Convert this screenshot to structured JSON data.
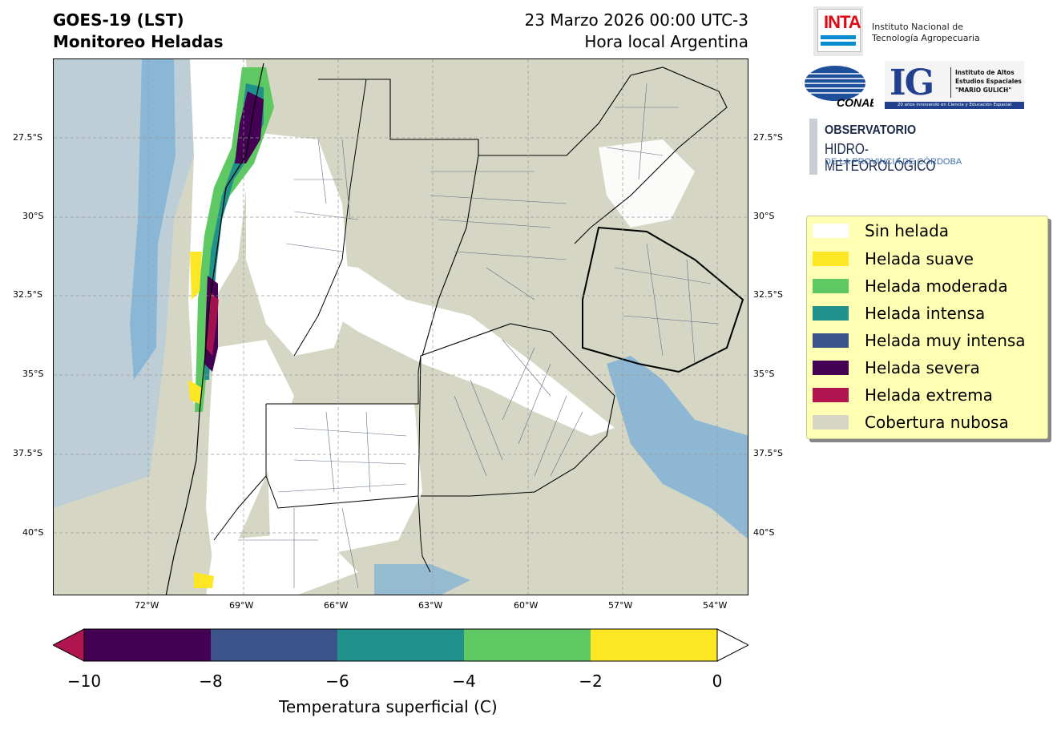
{
  "header": {
    "title_line1": "GOES-19 (LST)",
    "title_line2": "Monitoreo Heladas",
    "date_line": "23 Marzo 2026 00:00 UTC-3",
    "time_note": "Hora local Argentina"
  },
  "logos": {
    "inta_mark": "INTA",
    "inta_line1": "Instituto Nacional de",
    "inta_line2": "Tecnología Agropecuaria",
    "conae_mark": "CONAE",
    "ig_mark": "IG",
    "ig_line1": "Instituto de Altos",
    "ig_line2": "Estudios Espaciales",
    "ig_line3": "\"MARIO GULICH\"",
    "ig_footer": "20 años innovando en Ciencia y Educación Espacial",
    "obs_line1": "OBSERVATORIO",
    "obs_line2": "HIDRO-METEOROLÓGICO",
    "obs_line3": "DE LA PROVINCIA DE CÓRDOBA"
  },
  "map": {
    "lat_labels": [
      "27.5°S",
      "30°S",
      "32.5°S",
      "35°S",
      "37.5°S",
      "40°S"
    ],
    "lon_labels": [
      "72°W",
      "69°W",
      "66°W",
      "63°W",
      "60°W",
      "57°W",
      "54°W"
    ],
    "lat_values": [
      -27.5,
      -30,
      -32.5,
      -35,
      -37.5,
      -40
    ],
    "lon_values": [
      -72,
      -69,
      -66,
      -63,
      -60,
      -57,
      -54
    ],
    "extent": {
      "lon_min": -75,
      "lon_max": -53,
      "lat_min": -42,
      "lat_max": -25
    },
    "colors": {
      "cloud": "#d6d6c5",
      "no_frost": "#ffffff",
      "ocean_blue": "#7bafd6",
      "ocean_light": "#a9c9e6"
    }
  },
  "legend": {
    "items": [
      {
        "label": "Sin helada",
        "color": "#ffffff"
      },
      {
        "label": "Helada suave",
        "color": "#fde725"
      },
      {
        "label": "Helada moderada",
        "color": "#5ec962"
      },
      {
        "label": "Helada intensa",
        "color": "#21918c"
      },
      {
        "label": "Helada muy intensa",
        "color": "#3b528b"
      },
      {
        "label": "Helada severa",
        "color": "#440154"
      },
      {
        "label": "Helada extrema",
        "color": "#b0154f"
      },
      {
        "label": "Cobertura nubosa",
        "color": "#d6d6c5"
      }
    ]
  },
  "colorbar": {
    "ticks": [
      "−10",
      "−8",
      "−6",
      "−4",
      "−2",
      "0"
    ],
    "tick_values": [
      -10,
      -8,
      -6,
      -4,
      -2,
      0
    ],
    "bins": [
      {
        "from": -10,
        "to": -8,
        "color": "#440154"
      },
      {
        "from": -8,
        "to": -6,
        "color": "#3b528b"
      },
      {
        "from": -6,
        "to": -4,
        "color": "#21918c"
      },
      {
        "from": -4,
        "to": -2,
        "color": "#5ec962"
      },
      {
        "from": -2,
        "to": 0,
        "color": "#fde725"
      }
    ],
    "under_color": "#b0154f",
    "over_color": "#ffffff",
    "label": "Temperatura superficial (C)"
  }
}
